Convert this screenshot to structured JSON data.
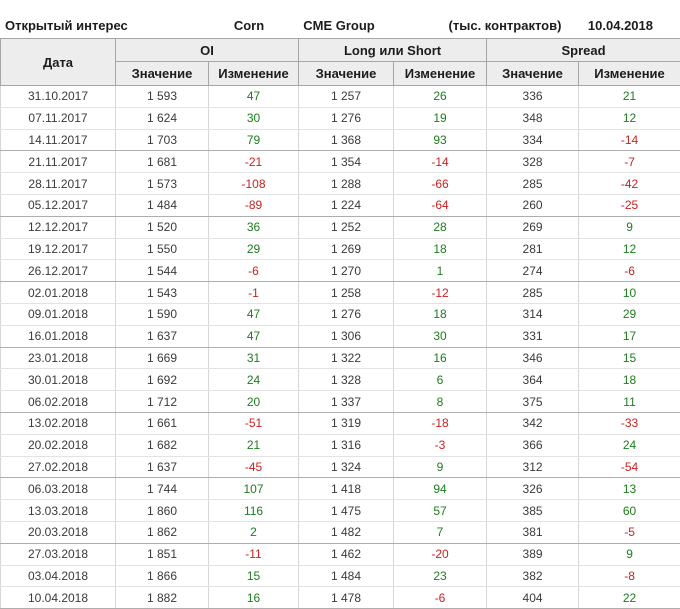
{
  "title_bar": {
    "title": "Открытый интерес",
    "instrument": "Corn",
    "exchange": "CME Group",
    "units": "(тыс. контрактов)",
    "report_date": "10.04.2018"
  },
  "table": {
    "date_header": "Дата",
    "groups": [
      "OI",
      "Long или Short",
      "Spread"
    ],
    "sub_headers": [
      "Значение",
      "Изменение",
      "Значение",
      "Изменение",
      "Значение",
      "Изменение"
    ]
  },
  "colors": {
    "positive": "#1e7c1e",
    "negative": "#cc2020",
    "header_bg": "#ededed",
    "header_border": "#a6a6a6",
    "grid_light": "#e3e3e3",
    "grid_vertical": "#d6d6d6",
    "grid_group": "#aeaeae"
  },
  "chart_data": {
    "type": "table",
    "title": "Открытый интерес — Corn — CME Group (тыс. контрактов), 10.04.2018",
    "columns": [
      "Дата",
      "OI Значение",
      "OI Изменение",
      "Long или Short Значение",
      "Long или Short Изменение",
      "Spread Значение",
      "Spread Изменение"
    ],
    "rows": [
      {
        "date": "31.10.2017",
        "oi": "1 593",
        "oi_chg": 47,
        "long": "1 257",
        "long_chg": 26,
        "spread": "336",
        "spread_chg": 21
      },
      {
        "date": "07.11.2017",
        "oi": "1 624",
        "oi_chg": 30,
        "long": "1 276",
        "long_chg": 19,
        "spread": "348",
        "spread_chg": 12
      },
      {
        "date": "14.11.2017",
        "oi": "1 703",
        "oi_chg": 79,
        "long": "1 368",
        "long_chg": 93,
        "spread": "334",
        "spread_chg": -14
      },
      {
        "date": "21.11.2017",
        "oi": "1 681",
        "oi_chg": -21,
        "long": "1 354",
        "long_chg": -14,
        "spread": "328",
        "spread_chg": -7
      },
      {
        "date": "28.11.2017",
        "oi": "1 573",
        "oi_chg": -108,
        "long": "1 288",
        "long_chg": -66,
        "spread": "285",
        "spread_chg": -42
      },
      {
        "date": "05.12.2017",
        "oi": "1 484",
        "oi_chg": -89,
        "long": "1 224",
        "long_chg": -64,
        "spread": "260",
        "spread_chg": -25
      },
      {
        "date": "12.12.2017",
        "oi": "1 520",
        "oi_chg": 36,
        "long": "1 252",
        "long_chg": 28,
        "spread": "269",
        "spread_chg": 9
      },
      {
        "date": "19.12.2017",
        "oi": "1 550",
        "oi_chg": 29,
        "long": "1 269",
        "long_chg": 18,
        "spread": "281",
        "spread_chg": 12
      },
      {
        "date": "26.12.2017",
        "oi": "1 544",
        "oi_chg": -6,
        "long": "1 270",
        "long_chg": 1,
        "spread": "274",
        "spread_chg": -6
      },
      {
        "date": "02.01.2018",
        "oi": "1 543",
        "oi_chg": -1,
        "long": "1 258",
        "long_chg": -12,
        "spread": "285",
        "spread_chg": 10
      },
      {
        "date": "09.01.2018",
        "oi": "1 590",
        "oi_chg": 47,
        "long": "1 276",
        "long_chg": 18,
        "spread": "314",
        "spread_chg": 29
      },
      {
        "date": "16.01.2018",
        "oi": "1 637",
        "oi_chg": 47,
        "long": "1 306",
        "long_chg": 30,
        "spread": "331",
        "spread_chg": 17
      },
      {
        "date": "23.01.2018",
        "oi": "1 669",
        "oi_chg": 31,
        "long": "1 322",
        "long_chg": 16,
        "spread": "346",
        "spread_chg": 15
      },
      {
        "date": "30.01.2018",
        "oi": "1 692",
        "oi_chg": 24,
        "long": "1 328",
        "long_chg": 6,
        "spread": "364",
        "spread_chg": 18
      },
      {
        "date": "06.02.2018",
        "oi": "1 712",
        "oi_chg": 20,
        "long": "1 337",
        "long_chg": 8,
        "spread": "375",
        "spread_chg": 11
      },
      {
        "date": "13.02.2018",
        "oi": "1 661",
        "oi_chg": -51,
        "long": "1 319",
        "long_chg": -18,
        "spread": "342",
        "spread_chg": -33
      },
      {
        "date": "20.02.2018",
        "oi": "1 682",
        "oi_chg": 21,
        "long": "1 316",
        "long_chg": -3,
        "spread": "366",
        "spread_chg": 24
      },
      {
        "date": "27.02.2018",
        "oi": "1 637",
        "oi_chg": -45,
        "long": "1 324",
        "long_chg": 9,
        "spread": "312",
        "spread_chg": -54
      },
      {
        "date": "06.03.2018",
        "oi": "1 744",
        "oi_chg": 107,
        "long": "1 418",
        "long_chg": 94,
        "spread": "326",
        "spread_chg": 13
      },
      {
        "date": "13.03.2018",
        "oi": "1 860",
        "oi_chg": 116,
        "long": "1 475",
        "long_chg": 57,
        "spread": "385",
        "spread_chg": 60
      },
      {
        "date": "20.03.2018",
        "oi": "1 862",
        "oi_chg": 2,
        "long": "1 482",
        "long_chg": 7,
        "spread": "381",
        "spread_chg": -5
      },
      {
        "date": "27.03.2018",
        "oi": "1 851",
        "oi_chg": -11,
        "long": "1 462",
        "long_chg": -20,
        "spread": "389",
        "spread_chg": 9
      },
      {
        "date": "03.04.2018",
        "oi": "1 866",
        "oi_chg": 15,
        "long": "1 484",
        "long_chg": 23,
        "spread": "382",
        "spread_chg": -8
      },
      {
        "date": "10.04.2018",
        "oi": "1 882",
        "oi_chg": 16,
        "long": "1 478",
        "long_chg": -6,
        "spread": "404",
        "spread_chg": 22
      }
    ]
  }
}
